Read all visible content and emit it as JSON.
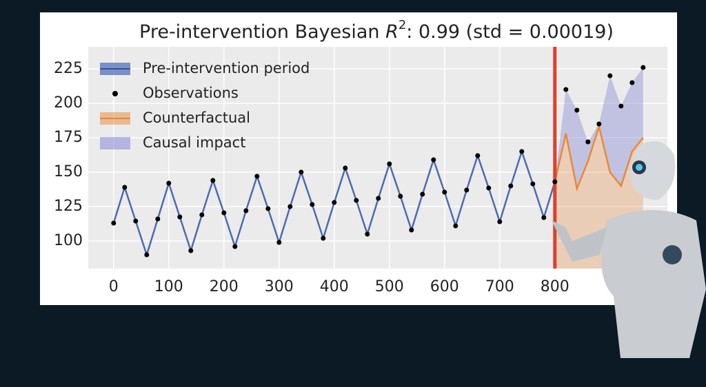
{
  "chart_data": {
    "type": "line",
    "title_parts": [
      "Pre-intervention Bayesian ",
      "R",
      "2",
      ": 0.99 (std = 0.00019)"
    ],
    "intervention_x": 800,
    "intervention_color": "#d9432f",
    "series": [
      {
        "name": "Pre-intervention period",
        "color": "#4c6ab0",
        "x": [
          0,
          20,
          40,
          60,
          80,
          100,
          120,
          140,
          160,
          180,
          200,
          220,
          240,
          260,
          280,
          300,
          320,
          340,
          360,
          380,
          400,
          420,
          440,
          460,
          480,
          500,
          520,
          540,
          560,
          580,
          600,
          620,
          640,
          660,
          680,
          700,
          720,
          740,
          760,
          780,
          800
        ],
        "values": [
          113,
          139,
          114.5,
          90,
          116,
          142,
          117.5,
          93,
          119,
          144,
          120.5,
          96,
          122,
          147,
          123.5,
          99,
          125,
          150,
          126.5,
          102,
          128,
          153,
          129.5,
          105,
          131,
          156,
          132.5,
          108,
          134,
          159,
          135.5,
          111,
          137,
          162,
          138.5,
          114,
          140,
          165,
          141.5,
          117,
          143
        ]
      },
      {
        "name": "Observations",
        "color": "#000000",
        "x": [
          0,
          20,
          40,
          60,
          80,
          100,
          120,
          140,
          160,
          180,
          200,
          220,
          240,
          260,
          280,
          300,
          320,
          340,
          360,
          380,
          400,
          420,
          440,
          460,
          480,
          500,
          520,
          540,
          560,
          580,
          600,
          620,
          640,
          660,
          680,
          700,
          720,
          740,
          760,
          780,
          800,
          820,
          840,
          860,
          880,
          900,
          920,
          940,
          960
        ],
        "values": [
          113,
          139,
          114.5,
          90,
          116,
          142,
          117.5,
          93,
          119,
          144,
          120.5,
          96,
          122,
          147,
          123.5,
          99,
          125,
          150,
          126.5,
          102,
          128,
          153,
          129.5,
          105,
          131,
          156,
          132.5,
          108,
          134,
          159,
          135.5,
          111,
          137,
          162,
          138.5,
          114,
          140,
          165,
          141.5,
          117,
          143,
          210,
          195,
          172,
          185,
          220,
          198,
          215,
          226
        ]
      },
      {
        "name": "Counterfactual",
        "color": "#e8883a",
        "x": [
          800,
          820,
          840,
          860,
          880,
          900,
          920,
          940,
          960
        ],
        "values": [
          143,
          178,
          138,
          158,
          183,
          150,
          140,
          165,
          175
        ]
      },
      {
        "name": "Causal impact",
        "color": "#8f8fd8"
      }
    ],
    "xlim": [
      -46,
      1004
    ],
    "ylim": [
      80,
      241
    ],
    "xticks": [
      0,
      100,
      200,
      300,
      400,
      500,
      600,
      700,
      800
    ],
    "yticks": [
      100,
      125,
      150,
      175,
      200,
      225
    ],
    "grid": true
  }
}
